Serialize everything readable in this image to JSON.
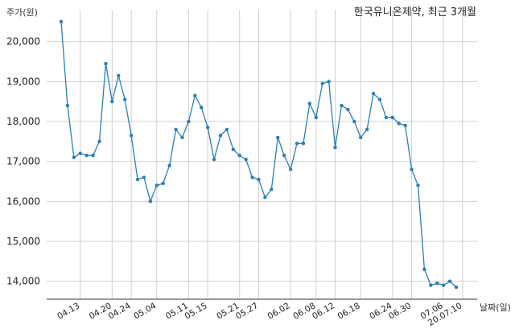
{
  "chart_data": {
    "type": "line",
    "title": "한국유니온제약, 최근 3개월",
    "ylabel": "주가(원)",
    "xlabel": "날짜(일)",
    "ylim": [
      13550,
      20800
    ],
    "yticks": [
      14000,
      15000,
      16000,
      17000,
      18000,
      19000,
      20000
    ],
    "ytick_labels": [
      "14,000",
      "15,000",
      "16,000",
      "17,000",
      "18,000",
      "19,000",
      "20,000"
    ],
    "x_tick_labels": [
      "04.13",
      "04.20",
      "04.24",
      "05.04",
      "05.11",
      "05.15",
      "05.21",
      "05.27",
      "06.02",
      "06.08",
      "06.12",
      "06.18",
      "06.24",
      "06.30",
      "07.06",
      "20.07.10"
    ],
    "x_tick_indices": [
      3,
      8,
      11,
      15,
      20,
      23,
      28,
      31,
      36,
      40,
      43,
      47,
      52,
      55,
      60,
      63
    ],
    "grid": true,
    "colors": {
      "line": "#2b7fb5",
      "marker": "#2b7fb5"
    },
    "series": [
      {
        "values": [
          20500,
          18400,
          17100,
          17200,
          17150,
          17150,
          17500,
          19450,
          18500,
          19150,
          18550,
          17650,
          16550,
          16600,
          16000,
          16400,
          16450,
          16900,
          17800,
          17600,
          18000,
          18650,
          18350,
          17850,
          17050,
          17650,
          17800,
          17300,
          17150,
          17050,
          16600,
          16550,
          16100,
          16300,
          17600,
          17150,
          16800,
          17450,
          17450,
          18450,
          18100,
          18950,
          19000,
          17350,
          18400,
          18300,
          18000,
          17600,
          17800,
          18700,
          18550,
          18100,
          18100,
          17950,
          17900,
          16800,
          16400,
          14300,
          13900,
          13950,
          13900,
          14000,
          13850
        ]
      }
    ]
  }
}
